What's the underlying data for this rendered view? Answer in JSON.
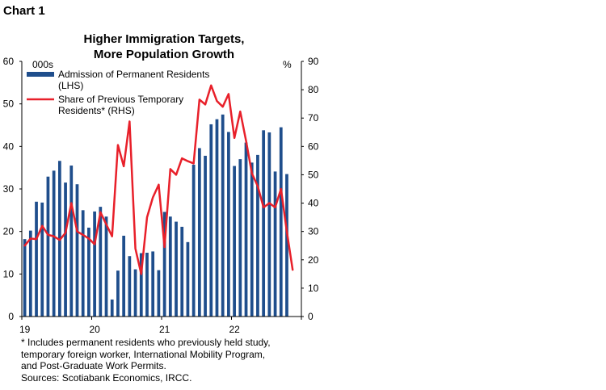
{
  "chart_label": "Chart 1",
  "chart_data": {
    "type": "bar+line",
    "title": [
      "Higher Immigration Targets,",
      "More Population Growth"
    ],
    "left_axis_unit": "000s",
    "right_axis_unit": "%",
    "left_ylim": [
      0,
      60
    ],
    "right_ylim": [
      0,
      90
    ],
    "left_ticks": [
      0,
      10,
      20,
      30,
      40,
      50,
      60
    ],
    "right_ticks": [
      0,
      10,
      20,
      30,
      40,
      50,
      60,
      70,
      80,
      90
    ],
    "x_tick_labels": [
      "19",
      "20",
      "21",
      "22"
    ],
    "months": [
      "2019-01",
      "2019-02",
      "2019-03",
      "2019-04",
      "2019-05",
      "2019-06",
      "2019-07",
      "2019-08",
      "2019-09",
      "2019-10",
      "2019-11",
      "2019-12",
      "2020-01",
      "2020-02",
      "2020-03",
      "2020-04",
      "2020-05",
      "2020-06",
      "2020-07",
      "2020-08",
      "2020-09",
      "2020-10",
      "2020-11",
      "2020-12",
      "2021-01",
      "2021-02",
      "2021-03",
      "2021-04",
      "2021-05",
      "2021-06",
      "2021-07",
      "2021-08",
      "2021-09",
      "2021-10",
      "2021-11",
      "2021-12",
      "2022-01",
      "2022-02",
      "2022-03",
      "2022-04",
      "2022-05",
      "2022-06",
      "2022-07",
      "2022-08",
      "2022-09",
      "2022-10",
      "2022-11",
      "2022-12"
    ],
    "grid": false,
    "legend_placement": "top-left",
    "series": [
      {
        "name": "Admission of Permanent Residents (LHS)",
        "type": "bar",
        "axis": "left",
        "color": "#1f4e8c",
        "values": [
          18.2,
          20.2,
          27.0,
          26.8,
          32.9,
          34.3,
          36.6,
          31.5,
          35.5,
          31.1,
          25.0,
          20.9,
          24.7,
          25.8,
          23.5,
          4.0,
          10.8,
          19.0,
          14.2,
          11.1,
          14.9,
          15.0,
          15.3,
          10.9,
          24.6,
          23.5,
          22.3,
          21.1,
          17.5,
          35.7,
          39.6,
          37.8,
          45.2,
          46.4,
          47.5,
          43.4,
          35.4,
          37.0,
          40.9,
          36.2,
          38.0,
          43.8,
          43.3,
          34.1,
          44.5,
          33.5
        ]
      },
      {
        "name": "Share of Previous Temporary Residents* (RHS)",
        "type": "line",
        "axis": "right",
        "color": "#e8202a",
        "values": [
          25.0,
          27.5,
          27.3,
          32.0,
          28.8,
          28.3,
          27.0,
          29.5,
          40.0,
          30.0,
          28.8,
          27.5,
          25.5,
          36.8,
          32.5,
          28.3,
          60.5,
          53.0,
          68.8,
          24.0,
          15.0,
          35.0,
          42.0,
          46.5,
          24.5,
          52.0,
          50.0,
          55.8,
          54.8,
          54.0,
          76.5,
          74.8,
          81.5,
          76.0,
          74.0,
          78.5,
          63.0,
          72.3,
          62.0,
          50.5,
          46.0,
          38.5,
          40.0,
          38.5,
          45.0,
          30.0,
          16.5
        ]
      }
    ],
    "legend": [
      {
        "lines": [
          "Admission of Permanent Residents",
          "(LHS)"
        ]
      },
      {
        "lines": [
          "Share of Previous Temporary",
          "Residents* (RHS)"
        ]
      }
    ]
  },
  "footnote": [
    "* Includes permanent residents who previously held study,",
    "temporary foreign worker, International Mobility Program,",
    "and Post-Graduate Work Permits.",
    "Sources: Scotiabank Economics, IRCC."
  ],
  "colors": {
    "bar": "#1f4e8c",
    "line": "#e8202a",
    "axis": "#000000"
  }
}
